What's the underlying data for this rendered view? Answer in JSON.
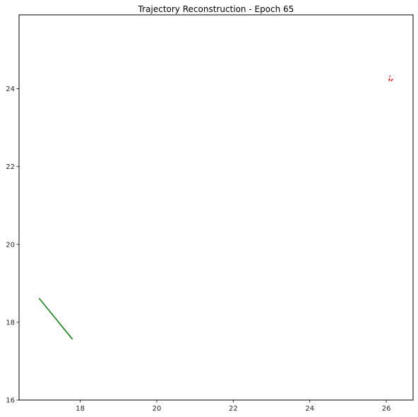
{
  "chart_data": {
    "type": "line",
    "title": "Trajectory Reconstruction - Epoch 65",
    "xlabel": "",
    "ylabel": "",
    "xlim": [
      16.4,
      26.7
    ],
    "ylim": [
      16.0,
      25.9
    ],
    "xticks": [
      18,
      20,
      22,
      24,
      26
    ],
    "yticks": [
      16,
      18,
      20,
      22,
      24
    ],
    "grid": false,
    "series": [
      {
        "color": "#008000",
        "style": "solid",
        "points": [
          [
            16.92,
            18.62
          ],
          [
            17.8,
            17.56
          ]
        ]
      },
      {
        "color": "#ff0000",
        "style": "dashed",
        "points": [
          [
            26.07,
            24.2
          ],
          [
            26.1,
            24.34
          ]
        ]
      },
      {
        "color": "#ff0000",
        "style": "dashed",
        "points": [
          [
            26.12,
            24.2
          ],
          [
            26.2,
            24.28
          ]
        ]
      }
    ]
  }
}
